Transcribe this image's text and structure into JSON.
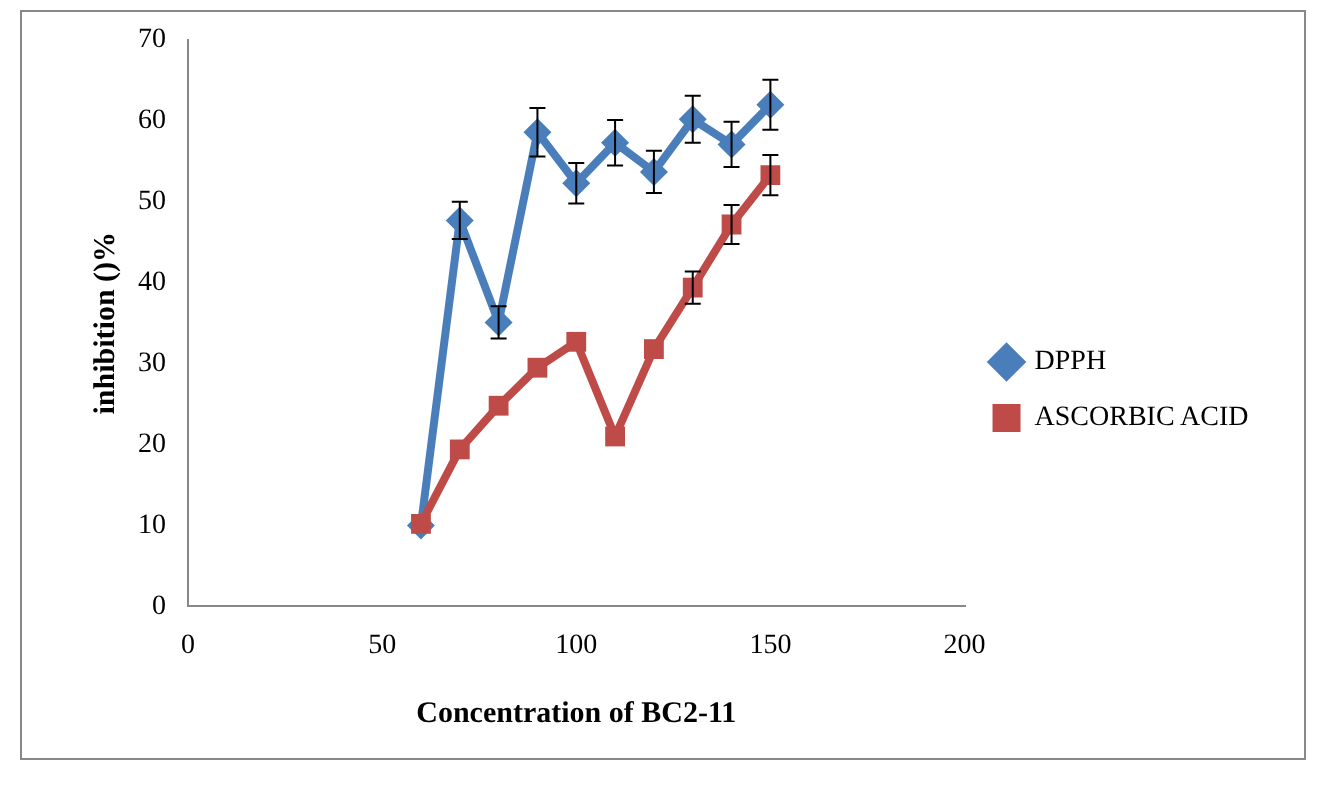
{
  "chart_data": {
    "type": "line",
    "xlabel": "Concentration of BC2-11",
    "ylabel": "inhibition ()%",
    "x": [
      60,
      70,
      80,
      90,
      100,
      110,
      120,
      130,
      140,
      150
    ],
    "series": [
      {
        "name": "DPPH",
        "color": "#4a7ebb",
        "marker": "diamond",
        "values": [
          10,
          47.7,
          35.1,
          58.6,
          52.3,
          57.3,
          53.7,
          60.2,
          57.1,
          62
        ],
        "errors": [
          null,
          2.3,
          2,
          3,
          2.5,
          2.8,
          2.6,
          2.9,
          2.8,
          3.1
        ]
      },
      {
        "name": "ASCORBIC ACID",
        "color": "#be4b48",
        "marker": "square",
        "values": [
          10.2,
          19.4,
          24.8,
          29.5,
          32.7,
          21,
          31.8,
          39.4,
          47.2,
          53.3
        ],
        "errors": [
          null,
          null,
          null,
          null,
          null,
          null,
          null,
          2,
          2.4,
          2.5
        ]
      }
    ],
    "xlim": [
      0,
      200
    ],
    "xticks": [
      0,
      50,
      100,
      150,
      200
    ],
    "ylim": [
      0,
      70
    ],
    "yticks": [
      0,
      10,
      20,
      30,
      40,
      50,
      60,
      70
    ],
    "grid": false,
    "legend": "right"
  }
}
